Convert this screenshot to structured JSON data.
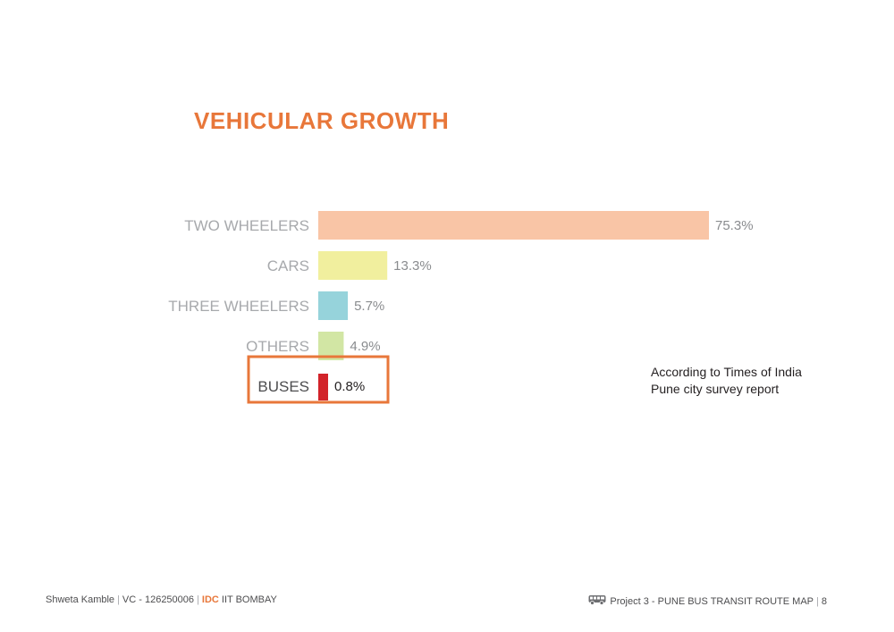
{
  "title": "VEHICULAR GROWTH",
  "chart_data": {
    "type": "bar",
    "orientation": "horizontal",
    "categories": [
      "TWO WHEELERS",
      "CARS",
      "THREE WHEELERS",
      "OTHERS",
      "BUSES"
    ],
    "values": [
      75.3,
      13.3,
      5.7,
      4.9,
      0.8
    ],
    "value_labels": [
      "75.3%",
      "13.3%",
      "5.7%",
      "4.9%",
      "0.8%"
    ],
    "colors": [
      "#f9c5a6",
      "#f1ef9e",
      "#96d3db",
      "#d2e6a4",
      "#d2232a"
    ],
    "highlight": "BUSES",
    "highlight_color": "#e8773a",
    "title": "VEHICULAR GROWTH",
    "xlim": [
      0,
      75.3
    ],
    "grid": false
  },
  "note": {
    "line1": "According to Times of India",
    "line2": "Pune city survey report"
  },
  "footer": {
    "author": "Shweta Kamble",
    "id": "VC - 126250006",
    "org_highlight": "IDC",
    "org": "IIT BOMBAY",
    "project": "Project 3 - PUNE BUS TRANSIT ROUTE MAP",
    "page": "8",
    "icon": "bus-icon"
  }
}
